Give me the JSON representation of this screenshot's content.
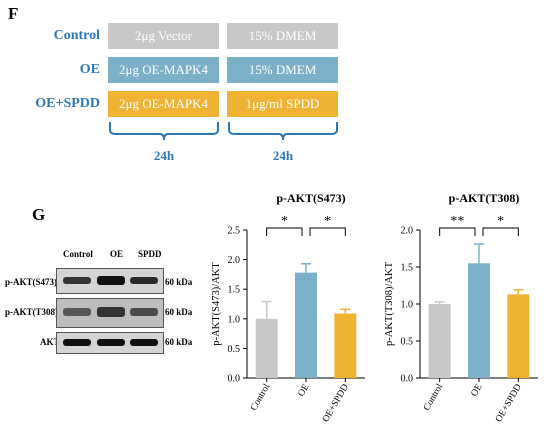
{
  "panel_f": {
    "letter": "F",
    "rows": [
      {
        "group": "Control",
        "cell1": "2μg Vector",
        "cell2": "15% DMEM",
        "color1": "#c8c8c8",
        "color2": "#c8c8c8"
      },
      {
        "group": "OE",
        "cell1": "2μg OE-MAPK4",
        "cell2": "15% DMEM",
        "color1": "#7bb0c8",
        "color2": "#7bb0c8"
      },
      {
        "group": "OE+SPDD",
        "cell1": "2μg OE-MAPK4",
        "cell2": "1μg/ml SPDD",
        "color1": "#f0b233",
        "color2": "#f0b233"
      }
    ],
    "durations": [
      "24h",
      "24h"
    ],
    "label_color": "#2e78b8"
  },
  "panel_g": {
    "letter": "G",
    "blot": {
      "lanes": [
        "Control",
        "OE",
        "SPDD"
      ],
      "rows": [
        {
          "label": "p-AKT(S473)",
          "kda": "60 kDa"
        },
        {
          "label": "p-AKT(T308)",
          "kda": "60 kDa"
        },
        {
          "label": "AKT",
          "kda": "60 kDa"
        }
      ]
    }
  },
  "chart_data": [
    {
      "type": "bar",
      "title": "p-AKT(S473)",
      "ylabel": "p-AKT(S473)/AKT",
      "categories": [
        "Control",
        "OE",
        "OE+SPDD"
      ],
      "values": [
        1.0,
        1.78,
        1.09
      ],
      "errors": [
        0.29,
        0.15,
        0.07
      ],
      "colors": [
        "#c8c8c8",
        "#7bb0c8",
        "#f0b233"
      ],
      "ylim": [
        0,
        2.5
      ],
      "yticks": [
        "0.0",
        "0.5",
        "1.0",
        "1.5",
        "2.0",
        "2.5"
      ],
      "significance": [
        {
          "from": 0,
          "to": 1,
          "label": "*"
        },
        {
          "from": 1,
          "to": 2,
          "label": "*"
        }
      ]
    },
    {
      "type": "bar",
      "title": "p-AKT(T308)",
      "ylabel": "p-AKT(T308)/AKT",
      "categories": [
        "Control",
        "OE",
        "OE+SPDD"
      ],
      "values": [
        1.0,
        1.55,
        1.13
      ],
      "errors": [
        0.03,
        0.26,
        0.06
      ],
      "colors": [
        "#c8c8c8",
        "#7bb0c8",
        "#f0b233"
      ],
      "ylim": [
        0,
        2.0
      ],
      "yticks": [
        "0.0",
        "0.5",
        "1.0",
        "1.5",
        "2.0"
      ],
      "significance": [
        {
          "from": 0,
          "to": 1,
          "label": "**"
        },
        {
          "from": 1,
          "to": 2,
          "label": "*"
        }
      ]
    }
  ]
}
